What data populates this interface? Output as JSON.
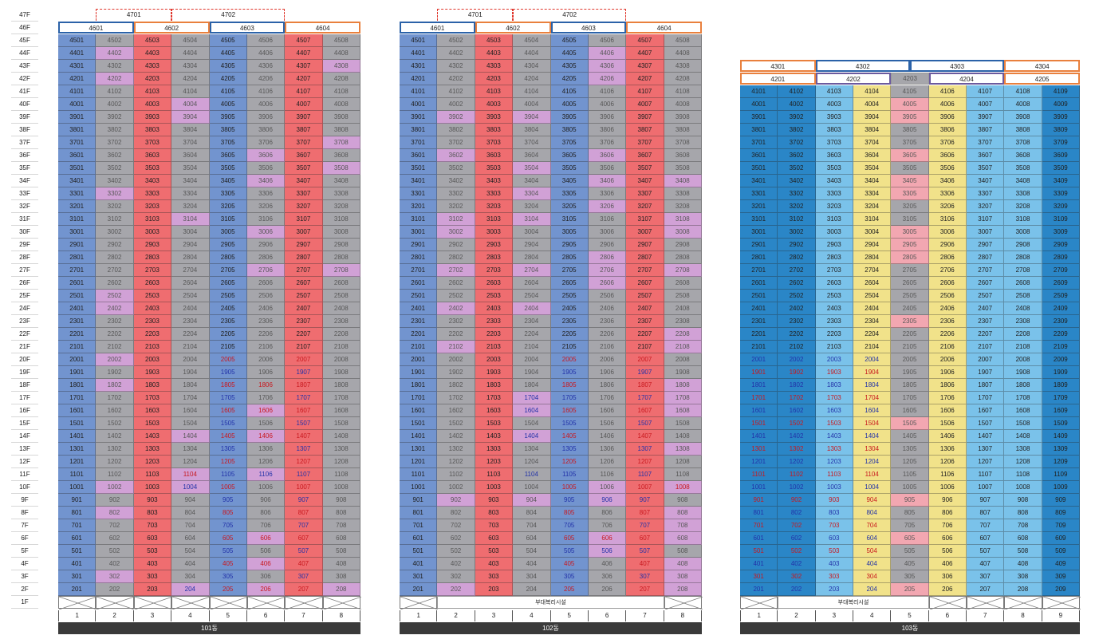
{
  "floors": [
    "47F",
    "46F",
    "45F",
    "44F",
    "43F",
    "42F",
    "41F",
    "40F",
    "39F",
    "38F",
    "37F",
    "36F",
    "35F",
    "34F",
    "33F",
    "32F",
    "31F",
    "30F",
    "29F",
    "28F",
    "27F",
    "26F",
    "25F",
    "24F",
    "23F",
    "22F",
    "21F",
    "20F",
    "19F",
    "18F",
    "17F",
    "16F",
    "15F",
    "14F",
    "13F",
    "12F",
    "11F",
    "10F",
    "9F",
    "8F",
    "7F",
    "6F",
    "5F",
    "4F",
    "3F",
    "2F",
    "1F"
  ],
  "colors": {
    "blue": "#7294cf",
    "gray": "#a6a6ab",
    "red": "#ef6d70",
    "pink": "#d1a1d6",
    "b103_dark": "#2a86c7",
    "b103_light": "#7ac2ea",
    "b103_yellow": "#f1e28a",
    "b103_pink": "#f2a7b1",
    "b103_gray": "#a6a6ab",
    "text_dark": "#202020",
    "text_blue": "#2232a8",
    "text_red": "#c8181e",
    "text_muted": "#575757",
    "box_blue": "#2b62a8",
    "box_orange": "#e9803d",
    "box_purple": "#6b5a9e",
    "dash_red": "#e0362c",
    "building_bar": "#3a3a3a"
  },
  "buildings": [
    {
      "name": "101동",
      "ncols": 8,
      "colnums": [
        "1",
        "2",
        "3",
        "4",
        "5",
        "6",
        "7",
        "8"
      ],
      "col_colors": [
        "blue",
        "gray",
        "red",
        "gray",
        "blue",
        "gray",
        "red",
        "gray"
      ],
      "pink_cells": [
        "4402",
        "4308",
        "4202",
        "4004",
        "3904",
        "3708",
        "3606",
        "3508",
        "3406",
        "3302",
        "3104",
        "3006",
        "2706",
        "2708",
        "2502",
        "2402",
        "2002",
        "1802",
        "1606",
        "1404",
        "1406",
        "1104",
        "1106",
        "1002",
        "1004",
        "802",
        "606",
        "406",
        "302",
        "204",
        "206",
        "208"
      ],
      "blue_text": [
        "1905",
        "1907",
        "1705",
        "1707",
        "1505",
        "1507",
        "1305",
        "1307",
        "1105",
        "1106",
        "1107",
        "1004",
        "905",
        "907",
        "705",
        "707",
        "505",
        "507",
        "305",
        "307",
        "204"
      ],
      "red_text": [
        "2005",
        "2007",
        "1805",
        "1806",
        "1807",
        "1605",
        "1606",
        "1607",
        "1405",
        "1406",
        "1407",
        "1205",
        "1207",
        "1104",
        "1005",
        "1007",
        "805",
        "807",
        "605",
        "606",
        "607",
        "405",
        "406",
        "407",
        "205",
        "206",
        "207"
      ],
      "top_rows": [
        [
          {
            "label": "4701",
            "col": 1,
            "span": 2,
            "style": "dash"
          },
          {
            "label": "4702",
            "col": 3,
            "span": 3,
            "style": "dash"
          }
        ],
        [
          {
            "label": "4601",
            "col": 0,
            "span": 2,
            "style": "blue"
          },
          {
            "label": "4602",
            "col": 2,
            "span": 2,
            "style": "orange"
          },
          {
            "label": "4603",
            "col": 4,
            "span": 2,
            "style": "blue"
          },
          {
            "label": "4604",
            "col": 6,
            "span": 2,
            "style": "orange"
          }
        ]
      ],
      "amenity": ""
    },
    {
      "name": "102동",
      "ncols": 8,
      "colnums": [
        "1",
        "2",
        "3",
        "4",
        "5",
        "6",
        "7",
        "8"
      ],
      "col_colors": [
        "blue",
        "gray",
        "red",
        "gray",
        "blue",
        "gray",
        "red",
        "gray"
      ],
      "pink_cells": [
        "4406",
        "4306",
        "4206",
        "3902",
        "3904",
        "3602",
        "3606",
        "3504",
        "3406",
        "3408",
        "3304",
        "3206",
        "3102",
        "3104",
        "3108",
        "3002",
        "3008",
        "2806",
        "2702",
        "2704",
        "2706",
        "2708",
        "2606",
        "2402",
        "2404",
        "2208",
        "2102",
        "2108",
        "1808",
        "1704",
        "1708",
        "1604",
        "1608",
        "1404",
        "1308",
        "1008",
        "1006",
        "902",
        "904",
        "906",
        "808",
        "708",
        "608",
        "606",
        "506",
        "408",
        "308",
        "202",
        "208"
      ],
      "blue_text": [
        "1905",
        "1907",
        "1705",
        "1707",
        "1505",
        "1507",
        "1305",
        "1307",
        "1105",
        "1107",
        "1104",
        "1604",
        "1404",
        "905",
        "907",
        "906",
        "705",
        "707",
        "505",
        "507",
        "506",
        "305",
        "307",
        "1704"
      ],
      "red_text": [
        "2005",
        "2007",
        "1805",
        "1807",
        "1605",
        "1607",
        "1405",
        "1407",
        "1205",
        "1207",
        "1005",
        "1007",
        "1008",
        "805",
        "807",
        "605",
        "607",
        "606",
        "405",
        "407",
        "205",
        "207"
      ],
      "top_rows": [
        [
          {
            "label": "4701",
            "col": 1,
            "span": 2,
            "style": "dash"
          },
          {
            "label": "4702",
            "col": 3,
            "span": 3,
            "style": "dash"
          }
        ],
        [
          {
            "label": "4601",
            "col": 0,
            "span": 2,
            "style": "blue"
          },
          {
            "label": "4602",
            "col": 2,
            "span": 2,
            "style": "orange"
          },
          {
            "label": "4603",
            "col": 4,
            "span": 2,
            "style": "blue"
          },
          {
            "label": "4604",
            "col": 6,
            "span": 2,
            "style": "orange"
          }
        ]
      ],
      "amenity": "부대복리시설"
    },
    {
      "name": "103동",
      "ncols": 9,
      "colnums": [
        "1",
        "2",
        "3",
        "4",
        "5",
        "6",
        "7",
        "8",
        "9"
      ],
      "col_colors": [
        "b103_dark",
        "b103_dark",
        "b103_light",
        "b103_yellow",
        "b103_gray",
        "b103_yellow",
        "b103_light",
        "b103_light",
        "b103_dark"
      ],
      "pink_cells": [
        "4005",
        "3905",
        "3605",
        "3405",
        "3305",
        "3005",
        "2905",
        "2805",
        "2305",
        "1505",
        "905",
        "605",
        "205"
      ],
      "blue_text": [
        "2001",
        "2002",
        "2003",
        "2004",
        "1801",
        "1802",
        "1803",
        "1804",
        "1601",
        "1602",
        "1603",
        "1604",
        "1401",
        "1402",
        "1403",
        "1404",
        "1201",
        "1202",
        "1203",
        "1204",
        "1001",
        "1002",
        "1003",
        "1004",
        "801",
        "802",
        "803",
        "804",
        "601",
        "602",
        "603",
        "604",
        "401",
        "402",
        "403",
        "404",
        "201",
        "202",
        "203",
        "204"
      ],
      "red_text": [
        "1901",
        "1902",
        "1903",
        "1904",
        "1701",
        "1702",
        "1703",
        "1704",
        "1501",
        "1502",
        "1503",
        "1504",
        "1301",
        "1302",
        "1303",
        "1304",
        "1101",
        "1102",
        "1103",
        "1104",
        "901",
        "902",
        "903",
        "904",
        "701",
        "702",
        "703",
        "704",
        "501",
        "502",
        "503",
        "504",
        "301",
        "302",
        "303",
        "304"
      ],
      "top_rows": [
        [
          {
            "label": "4301",
            "col": 0,
            "span": 2,
            "style": "orange"
          },
          {
            "label": "4302",
            "col": 2,
            "span": 2.5,
            "style": "blue"
          },
          {
            "label": "4303",
            "col": 4.5,
            "span": 2.5,
            "style": "blue"
          },
          {
            "label": "4304",
            "col": 7,
            "span": 2,
            "style": "orange"
          }
        ],
        [
          {
            "label": "4201",
            "col": 0,
            "span": 2,
            "style": "orange"
          },
          {
            "label": "4202",
            "col": 2,
            "span": 2,
            "style": "purple"
          },
          {
            "label": "4203",
            "col": 4,
            "span": 1,
            "style": "grayfill"
          },
          {
            "label": "4204",
            "col": 5,
            "span": 2,
            "style": "purple"
          },
          {
            "label": "4205",
            "col": 7,
            "span": 2,
            "style": "orange"
          }
        ]
      ],
      "amenity": "부대복리시설"
    }
  ]
}
